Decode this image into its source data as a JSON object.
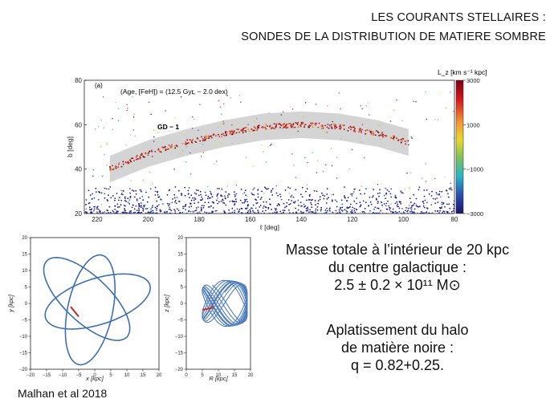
{
  "slide": {
    "title_line1": "LES COURANTS STELLAIRES :",
    "title_line2": "SONDES DE LA DISTRIBUTION DE MATIERE SOMBRE",
    "mass_line1": "Masse totale à l’intérieur de 20 kpc",
    "mass_line2": "du centre galactique :",
    "mass_line3": "2.5 ± 0.2 × 10¹¹ M⊙",
    "flat_line1": "Aplatissement du halo",
    "flat_line2": "de matière noire :",
    "flat_line3": "q = 0.82+0.25.",
    "citation": "Malhan et al  2018"
  },
  "chart_data": [
    {
      "type": "scatter",
      "panel_label": "(a)",
      "annotation": "(Age, [FeH]) = (12.5 Gyr, − 2.0 dex)",
      "stream_label": "GD − 1",
      "xlabel": "ℓ [deg]",
      "ylabel": "b [deg]",
      "xlim": [
        225,
        80
      ],
      "ylim": [
        20,
        80
      ],
      "x_ticks": [
        220,
        200,
        180,
        160,
        140,
        120,
        100,
        80
      ],
      "y_ticks": [
        20,
        40,
        60,
        80
      ],
      "colorbar_label": "L_z [km s⁻¹ kpc]",
      "colorbar_ticks": [
        3000,
        1000,
        -1000,
        -3000
      ],
      "colorbar_range": [
        -3000,
        3000
      ],
      "stream_track": {
        "l": [
          215,
          200,
          185,
          170,
          155,
          140,
          125,
          110,
          98
        ],
        "b": [
          40,
          47,
          52,
          56,
          59,
          60,
          59,
          56,
          52
        ]
      }
    },
    {
      "type": "line",
      "xlabel": "x [kpc]",
      "ylabel": "y [kpc]",
      "xlim": [
        -20,
        20
      ],
      "ylim": [
        -20,
        20
      ],
      "x_ticks": [
        -20,
        -15,
        -10,
        -5,
        0,
        5,
        10,
        15,
        20
      ],
      "y_ticks": [
        20,
        15,
        10,
        5,
        0,
        -5,
        -10,
        -15,
        -20
      ]
    },
    {
      "type": "line",
      "xlabel": "R [kpc]",
      "ylabel": "z [kpc]",
      "xlim": [
        0,
        20
      ],
      "ylim": [
        -20,
        20
      ],
      "x_ticks": [
        0,
        5,
        10,
        15,
        20
      ],
      "y_ticks": [
        20,
        15,
        10,
        5,
        0,
        -5,
        -10,
        -15,
        -20
      ]
    }
  ],
  "colors": {
    "orbit": "#3d6fb5",
    "stream": "#c0392b",
    "band": "#cfcfcf"
  }
}
